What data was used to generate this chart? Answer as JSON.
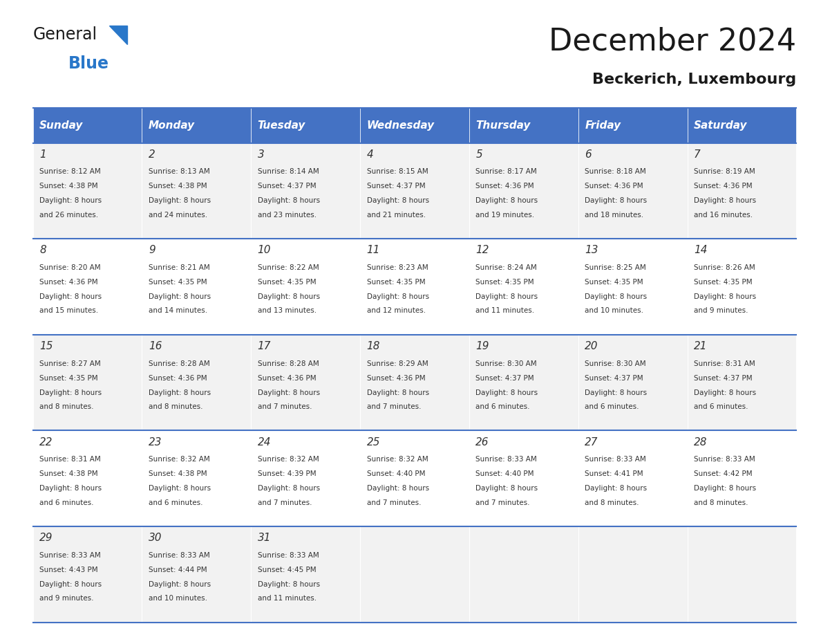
{
  "title": "December 2024",
  "subtitle": "Beckerich, Luxembourg",
  "header_color": "#4472C4",
  "header_text_color": "#FFFFFF",
  "days_of_week": [
    "Sunday",
    "Monday",
    "Tuesday",
    "Wednesday",
    "Thursday",
    "Friday",
    "Saturday"
  ],
  "bg_color": "#FFFFFF",
  "cell_bg_even": "#F2F2F2",
  "cell_bg_odd": "#FFFFFF",
  "border_color": "#4472C4",
  "text_color": "#333333",
  "calendar_data": [
    [
      {
        "day": 1,
        "sunrise": "8:12 AM",
        "sunset": "4:38 PM",
        "daylight": "8 hours and 26 minutes."
      },
      {
        "day": 2,
        "sunrise": "8:13 AM",
        "sunset": "4:38 PM",
        "daylight": "8 hours and 24 minutes."
      },
      {
        "day": 3,
        "sunrise": "8:14 AM",
        "sunset": "4:37 PM",
        "daylight": "8 hours and 23 minutes."
      },
      {
        "day": 4,
        "sunrise": "8:15 AM",
        "sunset": "4:37 PM",
        "daylight": "8 hours and 21 minutes."
      },
      {
        "day": 5,
        "sunrise": "8:17 AM",
        "sunset": "4:36 PM",
        "daylight": "8 hours and 19 minutes."
      },
      {
        "day": 6,
        "sunrise": "8:18 AM",
        "sunset": "4:36 PM",
        "daylight": "8 hours and 18 minutes."
      },
      {
        "day": 7,
        "sunrise": "8:19 AM",
        "sunset": "4:36 PM",
        "daylight": "8 hours and 16 minutes."
      }
    ],
    [
      {
        "day": 8,
        "sunrise": "8:20 AM",
        "sunset": "4:36 PM",
        "daylight": "8 hours and 15 minutes."
      },
      {
        "day": 9,
        "sunrise": "8:21 AM",
        "sunset": "4:35 PM",
        "daylight": "8 hours and 14 minutes."
      },
      {
        "day": 10,
        "sunrise": "8:22 AM",
        "sunset": "4:35 PM",
        "daylight": "8 hours and 13 minutes."
      },
      {
        "day": 11,
        "sunrise": "8:23 AM",
        "sunset": "4:35 PM",
        "daylight": "8 hours and 12 minutes."
      },
      {
        "day": 12,
        "sunrise": "8:24 AM",
        "sunset": "4:35 PM",
        "daylight": "8 hours and 11 minutes."
      },
      {
        "day": 13,
        "sunrise": "8:25 AM",
        "sunset": "4:35 PM",
        "daylight": "8 hours and 10 minutes."
      },
      {
        "day": 14,
        "sunrise": "8:26 AM",
        "sunset": "4:35 PM",
        "daylight": "8 hours and 9 minutes."
      }
    ],
    [
      {
        "day": 15,
        "sunrise": "8:27 AM",
        "sunset": "4:35 PM",
        "daylight": "8 hours and 8 minutes."
      },
      {
        "day": 16,
        "sunrise": "8:28 AM",
        "sunset": "4:36 PM",
        "daylight": "8 hours and 8 minutes."
      },
      {
        "day": 17,
        "sunrise": "8:28 AM",
        "sunset": "4:36 PM",
        "daylight": "8 hours and 7 minutes."
      },
      {
        "day": 18,
        "sunrise": "8:29 AM",
        "sunset": "4:36 PM",
        "daylight": "8 hours and 7 minutes."
      },
      {
        "day": 19,
        "sunrise": "8:30 AM",
        "sunset": "4:37 PM",
        "daylight": "8 hours and 6 minutes."
      },
      {
        "day": 20,
        "sunrise": "8:30 AM",
        "sunset": "4:37 PM",
        "daylight": "8 hours and 6 minutes."
      },
      {
        "day": 21,
        "sunrise": "8:31 AM",
        "sunset": "4:37 PM",
        "daylight": "8 hours and 6 minutes."
      }
    ],
    [
      {
        "day": 22,
        "sunrise": "8:31 AM",
        "sunset": "4:38 PM",
        "daylight": "8 hours and 6 minutes."
      },
      {
        "day": 23,
        "sunrise": "8:32 AM",
        "sunset": "4:38 PM",
        "daylight": "8 hours and 6 minutes."
      },
      {
        "day": 24,
        "sunrise": "8:32 AM",
        "sunset": "4:39 PM",
        "daylight": "8 hours and 7 minutes."
      },
      {
        "day": 25,
        "sunrise": "8:32 AM",
        "sunset": "4:40 PM",
        "daylight": "8 hours and 7 minutes."
      },
      {
        "day": 26,
        "sunrise": "8:33 AM",
        "sunset": "4:40 PM",
        "daylight": "8 hours and 7 minutes."
      },
      {
        "day": 27,
        "sunrise": "8:33 AM",
        "sunset": "4:41 PM",
        "daylight": "8 hours and 8 minutes."
      },
      {
        "day": 28,
        "sunrise": "8:33 AM",
        "sunset": "4:42 PM",
        "daylight": "8 hours and 8 minutes."
      }
    ],
    [
      {
        "day": 29,
        "sunrise": "8:33 AM",
        "sunset": "4:43 PM",
        "daylight": "8 hours and 9 minutes."
      },
      {
        "day": 30,
        "sunrise": "8:33 AM",
        "sunset": "4:44 PM",
        "daylight": "8 hours and 10 minutes."
      },
      {
        "day": 31,
        "sunrise": "8:33 AM",
        "sunset": "4:45 PM",
        "daylight": "8 hours and 11 minutes."
      },
      null,
      null,
      null,
      null
    ]
  ],
  "logo_text_general": "General",
  "logo_text_blue": "Blue",
  "logo_general_color": "#1a1a1a",
  "logo_blue_color": "#2977C9",
  "logo_triangle_color": "#2977C9"
}
